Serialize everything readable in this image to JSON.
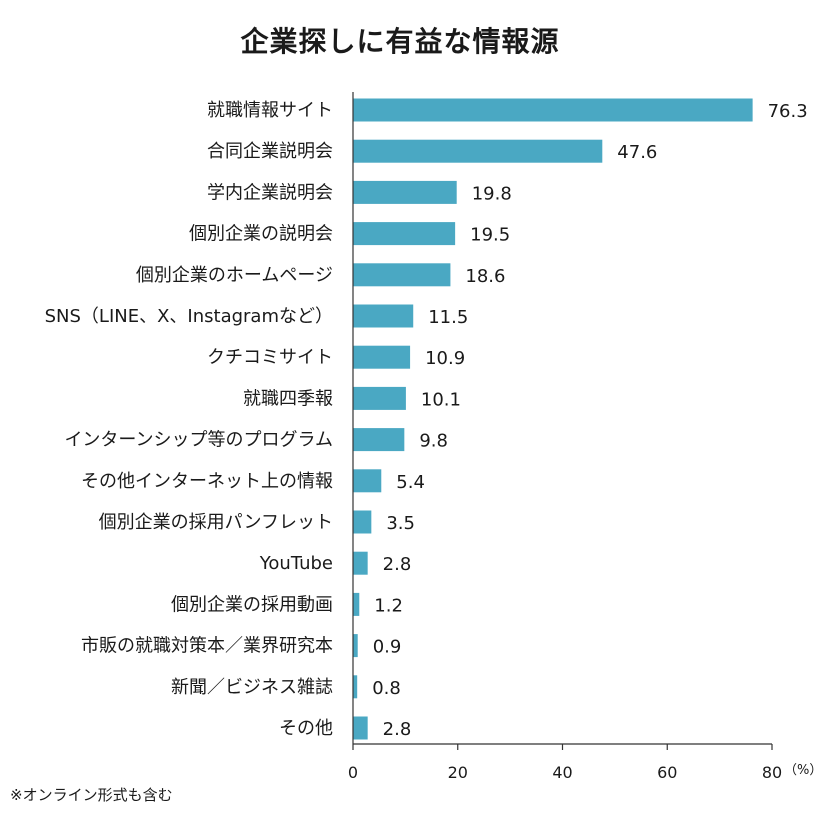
{
  "title": "企業探しに有益な情報源",
  "footnote": "※オンライン形式も含む",
  "colors": {
    "bar": "#4aa8c3",
    "axis": "#333333"
  },
  "chart_data": {
    "type": "bar",
    "orientation": "horizontal",
    "title": "企業探しに有益な情報源",
    "categories": [
      "就職情報サイト",
      "合同企業説明会",
      "学内企業説明会",
      "個別企業の説明会",
      "個別企業のホームページ",
      "SNS（LINE、X、Instagramなど）",
      "クチコミサイト",
      "就職四季報",
      "インターンシップ等のプログラム",
      "その他インターネット上の情報",
      "個別企業の採用パンフレット",
      "YouTube",
      "個別企業の採用動画",
      "市販の就職対策本／業界研究本",
      "新聞／ビジネス雑誌",
      "その他"
    ],
    "values": [
      76.3,
      47.6,
      19.8,
      19.5,
      18.6,
      11.5,
      10.9,
      10.1,
      9.8,
      5.4,
      3.5,
      2.8,
      1.2,
      0.9,
      0.8,
      2.8
    ],
    "value_labels": [
      "76.3",
      "47.6",
      "19.8",
      "19.5",
      "18.6",
      "11.5",
      "10.9",
      "10.1",
      "9.8",
      "5.4",
      "3.5",
      "2.8",
      "1.2",
      "0.9",
      "0.8",
      "2.8"
    ],
    "xlim": [
      0,
      80
    ],
    "xticks": [
      0,
      20,
      40,
      60,
      80
    ],
    "xtick_labels": [
      "0",
      "20",
      "40",
      "60",
      "80"
    ],
    "x_unit": "（%）",
    "grid": false,
    "legend": "none"
  }
}
